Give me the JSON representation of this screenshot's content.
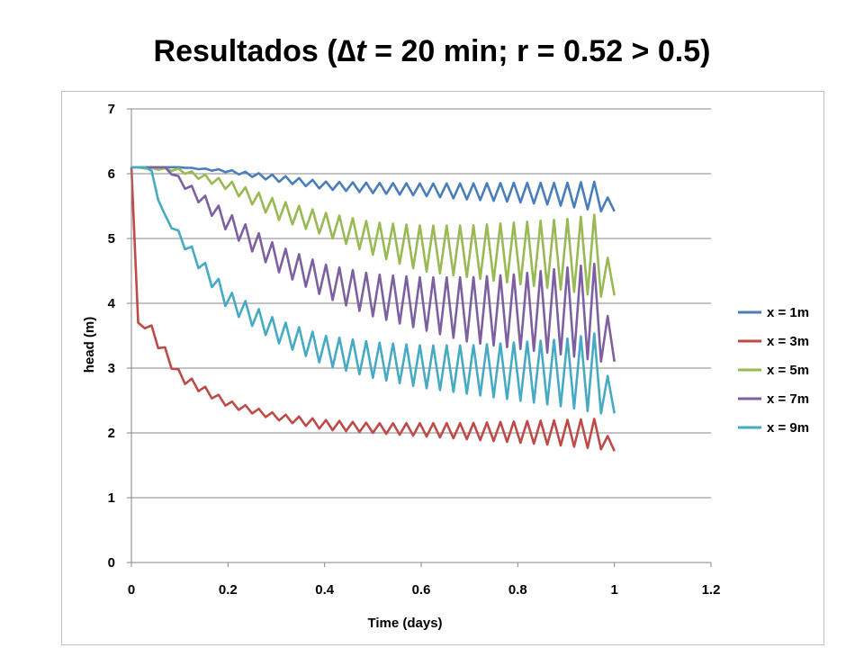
{
  "title": {
    "prefix": "Resultados (",
    "delta": "∆",
    "t": "t",
    "rest": " = 20 min; r = 0.52 > 0.5)"
  },
  "chart_data": {
    "type": "line",
    "xlabel": "Time (days)",
    "ylabel": "head (m)",
    "xlim": [
      0,
      1.2
    ],
    "ylim": [
      0,
      7
    ],
    "xticks": [
      0,
      0.2,
      0.4,
      0.6,
      0.8,
      1,
      1.2
    ],
    "xtick_labels": [
      "0",
      "0.2",
      "0.4",
      "0.6",
      "0.8",
      "1",
      "1.2"
    ],
    "yticks": [
      0,
      1,
      2,
      3,
      4,
      5,
      6,
      7
    ],
    "ytick_labels": [
      "0",
      "1",
      "2",
      "3",
      "4",
      "5",
      "6",
      "7"
    ],
    "grid": "horizontal",
    "legend_position": "right",
    "time_step_days": 0.0138889,
    "initial_head": 6.1,
    "series": [
      {
        "name": "x = 1m",
        "color": "#4a7ebb",
        "envelope": [
          [
            0,
            6.1,
            6.1
          ],
          [
            0.1,
            6.1,
            6.1
          ],
          [
            0.2,
            6.06,
            6.02
          ],
          [
            0.3,
            5.98,
            5.88
          ],
          [
            0.4,
            5.88,
            5.76
          ],
          [
            0.5,
            5.86,
            5.7
          ],
          [
            0.6,
            5.85,
            5.66
          ],
          [
            0.7,
            5.85,
            5.6
          ],
          [
            0.8,
            5.86,
            5.56
          ],
          [
            0.9,
            5.86,
            5.5
          ],
          [
            0.97,
            5.88,
            5.42
          ],
          [
            1.0,
            5.42,
            5.42
          ]
        ]
      },
      {
        "name": "x = 3m",
        "color": "#be4b48",
        "envelope": [
          [
            0,
            6.1,
            6.1
          ],
          [
            0.0139,
            3.7,
            3.7
          ],
          [
            0.03,
            3.8,
            3.6
          ],
          [
            0.1,
            2.95,
            2.8
          ],
          [
            0.2,
            2.5,
            2.4
          ],
          [
            0.3,
            2.3,
            2.2
          ],
          [
            0.4,
            2.2,
            2.05
          ],
          [
            0.5,
            2.15,
            2.0
          ],
          [
            0.6,
            2.15,
            1.95
          ],
          [
            0.7,
            2.15,
            1.9
          ],
          [
            0.8,
            2.18,
            1.85
          ],
          [
            0.9,
            2.2,
            1.8
          ],
          [
            0.97,
            2.22,
            1.75
          ],
          [
            1.0,
            1.72,
            1.72
          ]
        ]
      },
      {
        "name": "x = 5m",
        "color": "#98b954",
        "envelope": [
          [
            0,
            6.1,
            6.1
          ],
          [
            0.1,
            6.08,
            6.03
          ],
          [
            0.2,
            5.9,
            5.75
          ],
          [
            0.3,
            5.6,
            5.3
          ],
          [
            0.4,
            5.4,
            5.05
          ],
          [
            0.5,
            5.25,
            4.75
          ],
          [
            0.6,
            5.2,
            4.5
          ],
          [
            0.7,
            5.2,
            4.4
          ],
          [
            0.8,
            5.25,
            4.3
          ],
          [
            0.9,
            5.3,
            4.2
          ],
          [
            0.97,
            5.38,
            4.1
          ],
          [
            1.0,
            4.12,
            4.12
          ]
        ]
      },
      {
        "name": "x = 7m",
        "color": "#7d60a0",
        "envelope": [
          [
            0,
            6.1,
            6.1
          ],
          [
            0.07,
            6.1,
            6.1
          ],
          [
            0.1,
            5.95,
            5.85
          ],
          [
            0.2,
            5.4,
            5.1
          ],
          [
            0.3,
            4.9,
            4.5
          ],
          [
            0.4,
            4.6,
            4.1
          ],
          [
            0.5,
            4.45,
            3.8
          ],
          [
            0.6,
            4.4,
            3.6
          ],
          [
            0.7,
            4.4,
            3.4
          ],
          [
            0.8,
            4.45,
            3.3
          ],
          [
            0.9,
            4.55,
            3.2
          ],
          [
            0.97,
            4.62,
            3.1
          ],
          [
            1.0,
            3.1,
            3.1
          ]
        ]
      },
      {
        "name": "x = 9m",
        "color": "#46aac5",
        "envelope": [
          [
            0,
            6.1,
            6.1
          ],
          [
            0.04,
            6.1,
            6.1
          ],
          [
            0.06,
            5.45,
            5.45
          ],
          [
            0.1,
            5.1,
            4.95
          ],
          [
            0.2,
            4.2,
            3.9
          ],
          [
            0.3,
            3.75,
            3.4
          ],
          [
            0.4,
            3.5,
            3.05
          ],
          [
            0.5,
            3.4,
            2.85
          ],
          [
            0.6,
            3.35,
            2.7
          ],
          [
            0.7,
            3.35,
            2.6
          ],
          [
            0.8,
            3.4,
            2.5
          ],
          [
            0.9,
            3.45,
            2.4
          ],
          [
            0.97,
            3.55,
            2.3
          ],
          [
            1.0,
            2.3,
            2.3
          ]
        ]
      }
    ]
  }
}
